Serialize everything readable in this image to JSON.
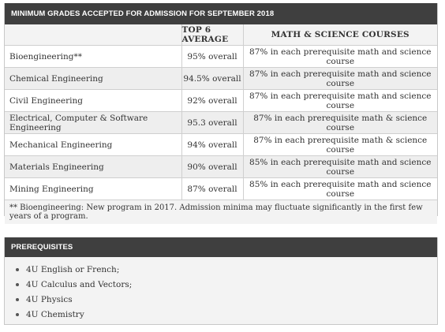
{
  "grades_panel": {
    "title": "MINIMUM GRADES ACCEPTED FOR ADMISSION FOR SEPTEMBER 2018",
    "col_avg": "TOP 6 AVERAGE",
    "col_ms": "MATH & SCIENCE COURSES",
    "rows": [
      {
        "program": "Bioengineering**",
        "average": "95% overall",
        "math_science": "87% in each prerequisite math and science course"
      },
      {
        "program": "Chemical Engineering",
        "average": "94.5% overall",
        "math_science": "87% in each prerequisite math and science course"
      },
      {
        "program": "Civil Engineering",
        "average": "92% overall",
        "math_science": "87% in each prerequisite math and science course"
      },
      {
        "program": "Electrical, Computer & Software Engineering",
        "average": "95.3 overall",
        "math_science": "87% in each prerequisite math & science course"
      },
      {
        "program": "Mechanical Engineering",
        "average": "94% overall",
        "math_science": "87% in each prerequisite math & science course"
      },
      {
        "program": "Materials Engineering",
        "average": "90% overall",
        "math_science": "85% in each prerequisite math and science course"
      },
      {
        "program": "Mining Engineering",
        "average": "87% overall",
        "math_science": "85% in each prerequisite math and science course"
      }
    ],
    "footnote": "** Bioengineering: New program in 2017. Admission minima may fluctuate significantly in the first few years of a program."
  },
  "prereq_panel": {
    "title": "PREREQUISITES",
    "items": [
      "4U English or French;",
      "4U Calculus and Vectors;",
      "4U Physics",
      "4U Chemistry"
    ]
  }
}
